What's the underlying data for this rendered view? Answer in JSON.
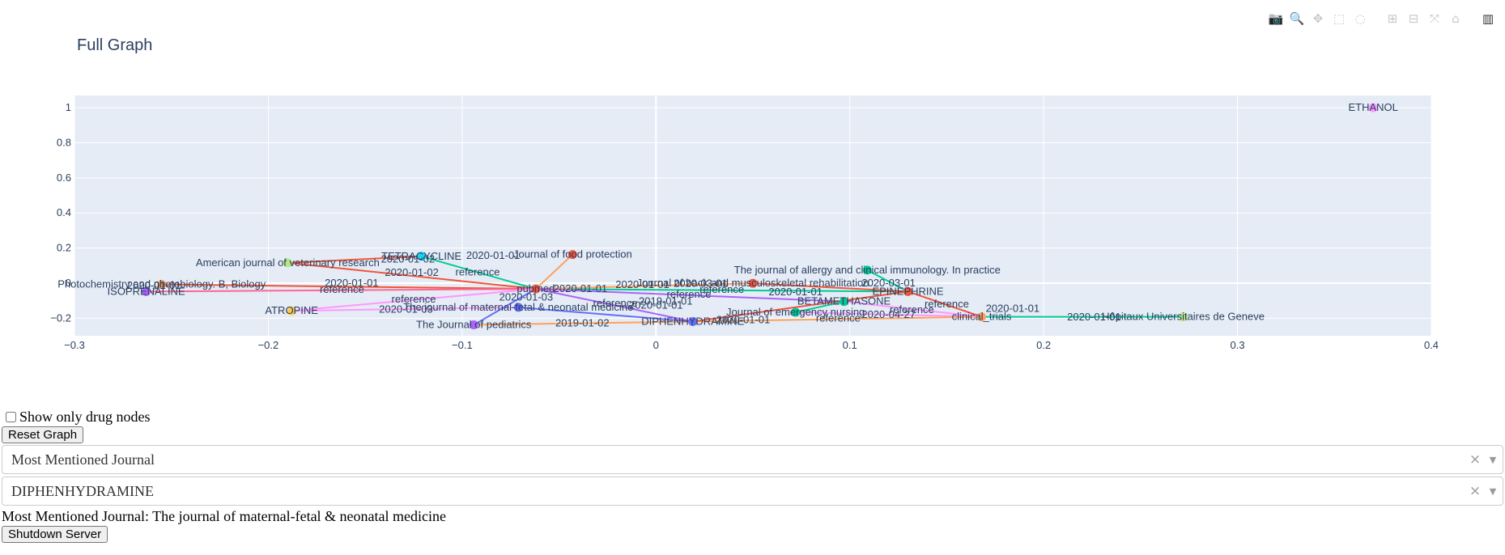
{
  "modebar": {
    "buttons": [
      {
        "name": "camera-icon",
        "glyph": "📷"
      },
      {
        "name": "zoom-icon",
        "glyph": "🔍",
        "active": true
      },
      {
        "name": "pan-icon",
        "glyph": "✥"
      },
      {
        "name": "box-select-icon",
        "glyph": "⬚"
      },
      {
        "name": "lasso-select-icon",
        "glyph": "◌"
      },
      {
        "name": "zoom-in-icon",
        "glyph": "⊞"
      },
      {
        "name": "zoom-out-icon",
        "glyph": "⊟"
      },
      {
        "name": "autoscale-icon",
        "glyph": "⤧"
      },
      {
        "name": "reset-axes-icon",
        "glyph": "⌂"
      },
      {
        "name": "plotly-logo-icon",
        "glyph": "▥"
      }
    ]
  },
  "chart_data": {
    "type": "scatter",
    "title": "Full Graph",
    "xlim": [
      -0.3,
      0.4
    ],
    "ylim": [
      -0.3,
      1.07
    ],
    "xticks": [
      -0.3,
      -0.2,
      -0.1,
      0,
      0.1,
      0.2,
      0.3,
      0.4
    ],
    "xtick_labels": [
      "−0.3",
      "−0.2",
      "−0.1",
      "0",
      "0.1",
      "0.2",
      "0.3",
      "0.4"
    ],
    "yticks": [
      -0.2,
      0,
      0.2,
      0.4,
      0.6,
      0.8,
      1
    ],
    "ytick_labels": [
      "−0.2",
      "0",
      "0.2",
      "0.4",
      "0.6",
      "0.8",
      "1"
    ],
    "grid": true,
    "background": "#e5ecf6",
    "nodes": [
      {
        "label": "ETHANOL",
        "x": 0.37,
        "y": 1.0,
        "color": "#ff97ff"
      },
      {
        "label": "TETRACYCLINE",
        "x": -0.121,
        "y": 0.153,
        "color": "#19d3f3"
      },
      {
        "label": "American journal of veterinary research",
        "x": -0.19,
        "y": 0.116,
        "color": "#b6e880"
      },
      {
        "label": "Journal of food protection",
        "x": -0.043,
        "y": 0.163,
        "color": "#ef553b"
      },
      {
        "label": "pubmed",
        "x": -0.062,
        "y": -0.033,
        "color": "#ef553b"
      },
      {
        "label": "Photochemistry and photobiology. B, Biology",
        "x": -0.255,
        "y": -0.007,
        "color": "#ffa15a"
      },
      {
        "label": "ISOPRENALINE",
        "x": -0.263,
        "y": -0.048,
        "color": "#ab63fa"
      },
      {
        "label": "ATROPINE",
        "x": -0.188,
        "y": -0.158,
        "color": "#fecb52"
      },
      {
        "label": "The Journal of pediatrics",
        "x": -0.094,
        "y": -0.238,
        "color": "#ab63fa"
      },
      {
        "label": "The journal of maternal-fetal & neonatal medicine",
        "x": -0.071,
        "y": -0.138,
        "color": "#636efa"
      },
      {
        "label": "DIPHENHYDRAMINE",
        "x": 0.019,
        "y": -0.219,
        "color": "#636efa"
      },
      {
        "label": "Journal of back and musculoskeletal rehabilitation",
        "x": 0.05,
        "y": -0.001,
        "color": "#ef553b"
      },
      {
        "label": "The journal of allergy and clinical immunology. In practice",
        "x": 0.109,
        "y": 0.074,
        "color": "#00cc96"
      },
      {
        "label": "EPINEPHRINE",
        "x": 0.13,
        "y": -0.048,
        "color": "#ef553b"
      },
      {
        "label": "BETAMETHASONE",
        "x": 0.097,
        "y": -0.105,
        "color": "#00cc96"
      },
      {
        "label": "Journal of emergency nursing",
        "x": 0.072,
        "y": -0.166,
        "color": "#00cc96"
      },
      {
        "label": "clinical_trials",
        "x": 0.168,
        "y": -0.192,
        "color": "#ffa15a"
      },
      {
        "label": "Hôpitaux Universitaires de Geneve",
        "x": 0.272,
        "y": -0.192,
        "color": "#b6e880"
      },
      {
        "label": "2020-01-01",
        "x": -0.039,
        "y": -0.033,
        "color": "#ef553b",
        "marker": false
      },
      {
        "label": "2020-01-01",
        "x": -0.084,
        "y": 0.157,
        "color": "#ef553b",
        "marker": false
      },
      {
        "label": "2020-01-02",
        "x": -0.128,
        "y": 0.136,
        "color": "#ef553b",
        "marker": false
      },
      {
        "label": "2020-01-02",
        "x": -0.126,
        "y": 0.06,
        "color": "#ef553b",
        "marker": false
      },
      {
        "label": "2020-01-01",
        "x": -0.157,
        "y": 0.0,
        "color": "#ef553b",
        "marker": false
      },
      {
        "label": "2020-01-01",
        "x": -0.259,
        "y": -0.015,
        "color": "#ef553b",
        "marker": false
      },
      {
        "label": "2020-01-03",
        "x": -0.067,
        "y": -0.08,
        "color": "#ef553b",
        "marker": false
      },
      {
        "label": "2020-01-03",
        "x": -0.129,
        "y": -0.15,
        "color": "#ef553b",
        "marker": false
      },
      {
        "label": "2020-01-01",
        "x": -0.007,
        "y": -0.01,
        "color": "#ef553b",
        "marker": false
      },
      {
        "label": "2020-03-01",
        "x": 0.023,
        "y": -0.003,
        "color": "#ef553b",
        "marker": false
      },
      {
        "label": "2020-01-01",
        "x": 0.0,
        "y": -0.126,
        "color": "#ef553b",
        "marker": false
      },
      {
        "label": "2019-01-01",
        "x": 0.005,
        "y": -0.105,
        "color": "#ef553b",
        "marker": false
      },
      {
        "label": "2019-01-02",
        "x": -0.038,
        "y": -0.228,
        "color": "#ef553b",
        "marker": false
      },
      {
        "label": "2020-01-01",
        "x": 0.072,
        "y": -0.05,
        "color": "#ef553b",
        "marker": false
      },
      {
        "label": "2020-03-01",
        "x": 0.12,
        "y": -0.001,
        "color": "#ef553b",
        "marker": false
      },
      {
        "label": "2020-01-01",
        "x": 0.045,
        "y": -0.21,
        "color": "#ef553b",
        "marker": false
      },
      {
        "label": "2020-04-27",
        "x": 0.12,
        "y": -0.18,
        "color": "#ef553b",
        "marker": false
      },
      {
        "label": "2020-01-01",
        "x": 0.184,
        "y": -0.146,
        "color": "#ef553b",
        "marker": false
      },
      {
        "label": "2020-01-01",
        "x": 0.226,
        "y": -0.195,
        "color": "#ef553b",
        "marker": false
      },
      {
        "label": "reference",
        "x": -0.092,
        "y": 0.063,
        "color": "#ef553b",
        "marker": false
      },
      {
        "label": "reference",
        "x": -0.162,
        "y": -0.037,
        "color": "#ef553b",
        "marker": false
      },
      {
        "label": "reference",
        "x": -0.125,
        "y": -0.092,
        "color": "#ef553b",
        "marker": false
      },
      {
        "label": "reference",
        "x": -0.021,
        "y": -0.115,
        "color": "#ef553b",
        "marker": false
      },
      {
        "label": "reference",
        "x": 0.017,
        "y": -0.065,
        "color": "#ef553b",
        "marker": false
      },
      {
        "label": "reference",
        "x": 0.034,
        "y": -0.038,
        "color": "#ef553b",
        "marker": false
      },
      {
        "label": "reference",
        "x": 0.094,
        "y": -0.201,
        "color": "#ef553b",
        "marker": false
      },
      {
        "label": "reference",
        "x": 0.15,
        "y": -0.12,
        "color": "#ef553b",
        "marker": false
      },
      {
        "label": "reference",
        "x": 0.132,
        "y": -0.152,
        "color": "#ef553b",
        "marker": false
      }
    ],
    "edges": [
      {
        "from": [
          -0.121,
          0.153
        ],
        "to": [
          -0.062,
          -0.033
        ],
        "color": "#00cc96"
      },
      {
        "from": [
          -0.19,
          0.116
        ],
        "to": [
          -0.062,
          -0.033
        ],
        "color": "#ef553b"
      },
      {
        "from": [
          -0.121,
          0.153
        ],
        "to": [
          -0.19,
          0.116
        ],
        "color": "#ef553b"
      },
      {
        "from": [
          -0.043,
          0.163
        ],
        "to": [
          -0.062,
          -0.033
        ],
        "color": "#ffa15a"
      },
      {
        "from": [
          -0.255,
          -0.007
        ],
        "to": [
          -0.062,
          -0.033
        ],
        "color": "#ef553b"
      },
      {
        "from": [
          -0.263,
          -0.048
        ],
        "to": [
          -0.062,
          -0.033
        ],
        "color": "#ff6692"
      },
      {
        "from": [
          -0.188,
          -0.158
        ],
        "to": [
          -0.062,
          -0.033
        ],
        "color": "#ff97ff"
      },
      {
        "from": [
          -0.188,
          -0.158
        ],
        "to": [
          -0.071,
          -0.138
        ],
        "color": "#ff97ff"
      },
      {
        "from": [
          -0.094,
          -0.238
        ],
        "to": [
          -0.062,
          -0.033
        ],
        "color": "#636efa"
      },
      {
        "from": [
          -0.094,
          -0.238
        ],
        "to": [
          0.019,
          -0.219
        ],
        "color": "#ffa15a"
      },
      {
        "from": [
          -0.071,
          -0.138
        ],
        "to": [
          0.019,
          -0.219
        ],
        "color": "#636efa"
      },
      {
        "from": [
          -0.062,
          -0.033
        ],
        "to": [
          0.13,
          -0.048
        ],
        "color": "#00cc96"
      },
      {
        "from": [
          -0.062,
          -0.033
        ],
        "to": [
          0.05,
          -0.001
        ],
        "color": "#ffa15a"
      },
      {
        "from": [
          -0.062,
          -0.033
        ],
        "to": [
          0.097,
          -0.105
        ],
        "color": "#ab63fa"
      },
      {
        "from": [
          -0.062,
          -0.033
        ],
        "to": [
          0.019,
          -0.219
        ],
        "color": "#ab63fa"
      },
      {
        "from": [
          0.109,
          0.074
        ],
        "to": [
          0.13,
          -0.048
        ],
        "color": "#00cc96"
      },
      {
        "from": [
          0.05,
          -0.001
        ],
        "to": [
          0.13,
          -0.048
        ],
        "color": "#ef553b"
      },
      {
        "from": [
          0.13,
          -0.048
        ],
        "to": [
          0.168,
          -0.192
        ],
        "color": "#ef553b"
      },
      {
        "from": [
          0.097,
          -0.105
        ],
        "to": [
          0.072,
          -0.166
        ],
        "color": "#00cc96"
      },
      {
        "from": [
          0.072,
          -0.166
        ],
        "to": [
          0.168,
          -0.192
        ],
        "color": "#ff97ff"
      },
      {
        "from": [
          0.019,
          -0.219
        ],
        "to": [
          0.168,
          -0.192
        ],
        "color": "#ffa15a"
      },
      {
        "from": [
          0.168,
          -0.192
        ],
        "to": [
          0.272,
          -0.192
        ],
        "color": "#00cc96"
      },
      {
        "from": [
          0.097,
          -0.105
        ],
        "to": [
          0.168,
          -0.192
        ],
        "color": "#ff97ff"
      },
      {
        "from": [
          0.019,
          -0.219
        ],
        "to": [
          0.13,
          -0.048
        ],
        "color": "#ef553b"
      }
    ]
  },
  "controls": {
    "checkbox_label": "Show only drug nodes",
    "reset_label": "Reset Graph",
    "dropdown1_value": "Most Mentioned Journal",
    "dropdown2_value": "DIPHENHYDRAMINE",
    "clear_glyph": "×",
    "arrow_glyph": "▼",
    "result_text": "Most Mentioned Journal: The journal of maternal-fetal & neonatal medicine",
    "shutdown_label": "Shutdown Server"
  }
}
